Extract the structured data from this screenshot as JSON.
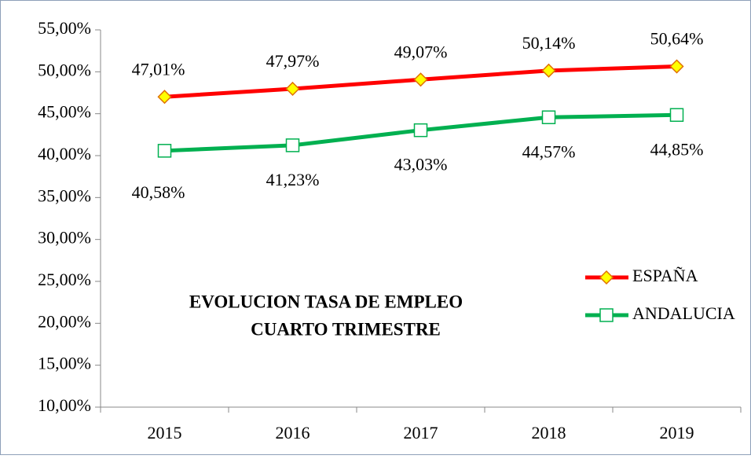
{
  "chart_data": {
    "type": "line",
    "title": [
      "EVOLUCION TASA DE EMPLEO",
      "CUARTO TRIMESTRE"
    ],
    "categories": [
      "2015",
      "2016",
      "2017",
      "2018",
      "2019"
    ],
    "series": [
      {
        "name": "ESPAÑA",
        "color": "#ff0000",
        "marker": "diamond",
        "values": [
          47.01,
          47.97,
          49.07,
          50.14,
          50.64
        ],
        "value_labels": [
          "47,01%",
          "47,97%",
          "49,07%",
          "50,14%",
          "50,64%"
        ]
      },
      {
        "name": "ANDALUCIA",
        "color": "#00b050",
        "marker": "square",
        "values": [
          40.58,
          41.23,
          43.03,
          44.57,
          44.85
        ],
        "value_labels": [
          "40,58%",
          "41,23%",
          "43,03%",
          "44,57%",
          "44,85%"
        ]
      }
    ],
    "ylim": [
      10,
      55
    ],
    "yticks": [
      {
        "value": 10,
        "label": "10,00%"
      },
      {
        "value": 15,
        "label": "15,00%"
      },
      {
        "value": 20,
        "label": "20,00%"
      },
      {
        "value": 25,
        "label": "25,00%"
      },
      {
        "value": 30,
        "label": "30,00%"
      },
      {
        "value": 35,
        "label": "35,00%"
      },
      {
        "value": 40,
        "label": "40,00%"
      },
      {
        "value": 45,
        "label": "45,00%"
      },
      {
        "value": 50,
        "label": "50,00%"
      },
      {
        "value": 55,
        "label": "55,00%"
      }
    ],
    "grid": false,
    "legend": "right"
  }
}
